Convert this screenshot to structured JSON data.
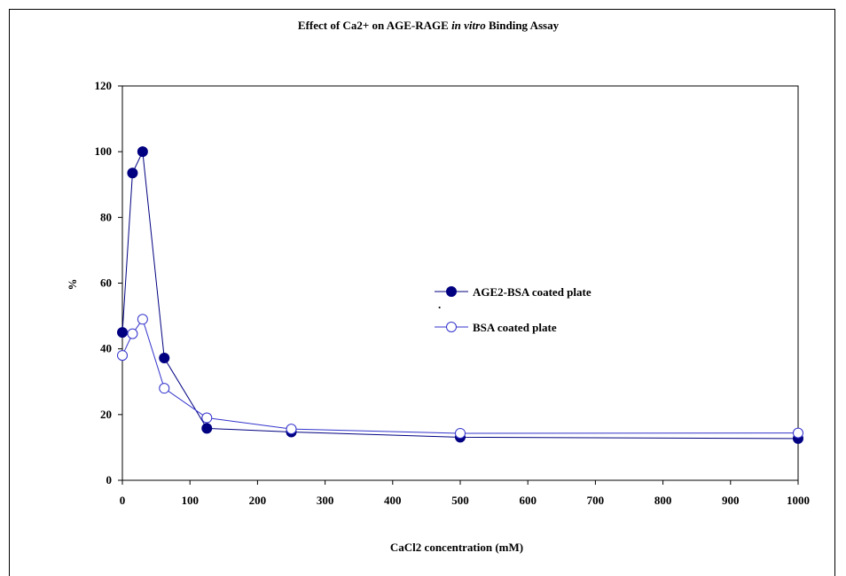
{
  "chart_data": {
    "type": "line",
    "title_parts": [
      "Effect of Ca2+ on AGE-RAGE ",
      "in vitro",
      " Binding Assay"
    ],
    "xlabel": "CaCl2 concentration (mM)",
    "ylabel": "%",
    "xlim": [
      0,
      1000
    ],
    "ylim": [
      0,
      120
    ],
    "xticks": [
      "0",
      "100",
      "200",
      "300",
      "400",
      "500",
      "600",
      "700",
      "800",
      "900",
      "1000"
    ],
    "yticks": [
      "0",
      "20",
      "40",
      "60",
      "80",
      "100",
      "120"
    ],
    "grid": false,
    "legend_position": "right-center",
    "legend_stray_mark": ".",
    "series": [
      {
        "name": "AGE2-BSA coated plate",
        "marker": "filled-circle",
        "color": "#000080",
        "points": [
          [
            0,
            45
          ],
          [
            15,
            93.5
          ],
          [
            30,
            100
          ],
          [
            62,
            37.2
          ],
          [
            125,
            15.8
          ],
          [
            250,
            14.7
          ],
          [
            500,
            13.1
          ],
          [
            1000,
            12.7
          ]
        ]
      },
      {
        "name": "BSA coated plate",
        "marker": "open-circle",
        "color": "#3333cc",
        "points": [
          [
            0,
            38
          ],
          [
            15,
            44.6
          ],
          [
            30,
            49
          ],
          [
            62,
            28
          ],
          [
            125,
            19
          ],
          [
            250,
            15.6
          ],
          [
            500,
            14.3
          ],
          [
            1000,
            14.4
          ]
        ]
      }
    ]
  }
}
